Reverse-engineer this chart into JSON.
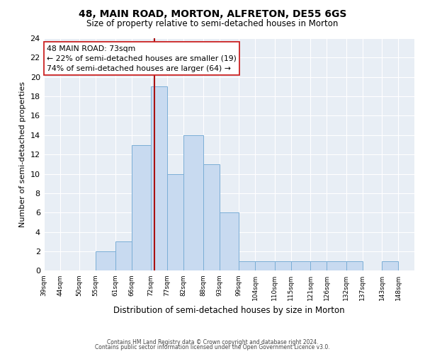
{
  "title": "48, MAIN ROAD, MORTON, ALFRETON, DE55 6GS",
  "subtitle": "Size of property relative to semi-detached houses in Morton",
  "xlabel": "Distribution of semi-detached houses by size in Morton",
  "ylabel": "Number of semi-detached properties",
  "bin_labels": [
    "39sqm",
    "44sqm",
    "50sqm",
    "55sqm",
    "61sqm",
    "66sqm",
    "72sqm",
    "77sqm",
    "82sqm",
    "88sqm",
    "93sqm",
    "99sqm",
    "104sqm",
    "110sqm",
    "115sqm",
    "121sqm",
    "126sqm",
    "132sqm",
    "137sqm",
    "143sqm",
    "148sqm"
  ],
  "bin_edges": [
    39,
    44,
    50,
    55,
    61,
    66,
    72,
    77,
    82,
    88,
    93,
    99,
    104,
    110,
    115,
    121,
    126,
    132,
    137,
    143,
    148,
    153
  ],
  "counts": [
    0,
    0,
    0,
    2,
    3,
    13,
    19,
    10,
    14,
    11,
    6,
    1,
    1,
    1,
    1,
    1,
    1,
    1,
    0,
    1,
    0
  ],
  "property_value": 73,
  "pct_smaller": 22,
  "n_smaller": 19,
  "pct_larger": 74,
  "n_larger": 64,
  "bar_color": "#c8daf0",
  "bar_edge_color": "#7aaed6",
  "line_color": "#aa1111",
  "annotation_box_edge": "#cc2222",
  "fig_bg_color": "#ffffff",
  "plot_bg_color": "#e8eef5",
  "grid_color": "#ffffff",
  "ylim": [
    0,
    24
  ],
  "yticks": [
    0,
    2,
    4,
    6,
    8,
    10,
    12,
    14,
    16,
    18,
    20,
    22,
    24
  ],
  "footer_line1": "Contains HM Land Registry data © Crown copyright and database right 2024.",
  "footer_line2": "Contains public sector information licensed under the Open Government Licence v3.0."
}
